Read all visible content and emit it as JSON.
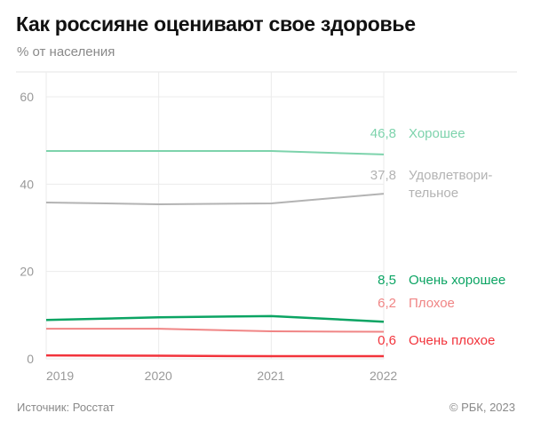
{
  "header": {
    "title": "Как россияне оценивают свое здоровье",
    "subtitle": "% от населения"
  },
  "footer": {
    "source": "Источник: Росстат",
    "copyright": "© РБК, 2023"
  },
  "chart_data": {
    "type": "line",
    "x": [
      "2019",
      "2020",
      "2021",
      "2022"
    ],
    "ylim": [
      0,
      60
    ],
    "yticks": [
      "0",
      "20",
      "40",
      "60"
    ],
    "grid": true,
    "series": [
      {
        "name": "Хорошее",
        "name_lines": [
          "Хорошее"
        ],
        "values": [
          47.6,
          47.6,
          47.6,
          46.8
        ],
        "end_label": "46,8",
        "color": "#7dd3ac"
      },
      {
        "name": "Удовлетворительное",
        "name_lines": [
          "Удовлетвори-",
          "тельное"
        ],
        "values": [
          35.8,
          35.4,
          35.6,
          37.8
        ],
        "end_label": "37,8",
        "color": "#b3b3b3"
      },
      {
        "name": "Очень хорошее",
        "name_lines": [
          "Очень хорошее"
        ],
        "values": [
          8.9,
          9.5,
          9.8,
          8.5
        ],
        "end_label": "8,5",
        "color": "#0ba463"
      },
      {
        "name": "Плохое",
        "name_lines": [
          "Плохое"
        ],
        "values": [
          6.9,
          6.9,
          6.3,
          6.2
        ],
        "end_label": "6,2",
        "color": "#f08585"
      },
      {
        "name": "Очень плохое",
        "name_lines": [
          "Очень плохое"
        ],
        "values": [
          0.8,
          0.7,
          0.6,
          0.6
        ],
        "end_label": "0,6",
        "color": "#f2333b"
      }
    ]
  }
}
